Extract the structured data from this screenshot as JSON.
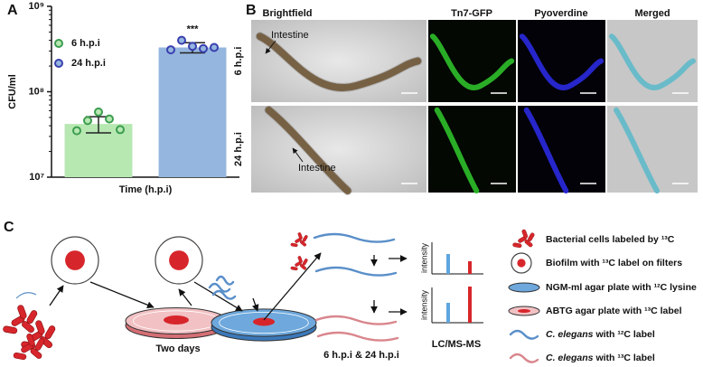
{
  "panel_labels": [
    "A",
    "B",
    "C"
  ],
  "chart_data": {
    "type": "bar",
    "ylabel": "CFU/ml",
    "xlabel": "Time (h.p.i)",
    "log_scale": true,
    "ylim": [
      10000000,
      1000000000
    ],
    "yticks": [
      {
        "value": 10000000,
        "label": "10⁷"
      },
      {
        "value": 100000000,
        "label": "10⁸"
      },
      {
        "value": 1000000000,
        "label": "10⁹"
      }
    ],
    "legend": "upper left",
    "annotation": "***",
    "series": [
      {
        "name": "6 h.p.i",
        "color": "#b7e8b2",
        "point_color": "#3c9d4f",
        "values": [
          42000000
        ],
        "error": [
          9000000
        ],
        "points": [
          35000000,
          46000000,
          58000000,
          48000000,
          36000000
        ]
      },
      {
        "name": "24 h.p.i",
        "color": "#95b6de",
        "point_color": "#3a3fb0",
        "values": [
          330000000
        ],
        "error": [
          45000000
        ],
        "points": [
          310000000,
          400000000,
          340000000,
          320000000,
          330000000
        ]
      }
    ]
  },
  "microscopy": {
    "columns": [
      "Brightfield",
      "Tn7-GFP",
      "Pyoverdine",
      "Merged"
    ],
    "rows": [
      "6 h.p.i",
      "24 h.p.i"
    ],
    "annotations": [
      "Intestine",
      "Intestine"
    ]
  },
  "workflow": {
    "steps": [
      "Two days",
      "6 h.p.i & 24 h.p.i",
      "LC/MS-MS"
    ],
    "graph_axis_labels": [
      "intensity",
      "intensity"
    ],
    "legend": [
      {
        "text": "Bacterial cells labeled by ¹³C"
      },
      {
        "text": "Biofilm with ¹³C label on filters"
      },
      {
        "text": "NGM-ml agar plate with ¹²C lysine"
      },
      {
        "text": "ABTG agar plate with ¹³C label"
      },
      {
        "italic": "C. elegans",
        "text": " with ¹²C label"
      },
      {
        "italic": "C. elegans",
        "text": " with ¹³C label"
      }
    ]
  }
}
